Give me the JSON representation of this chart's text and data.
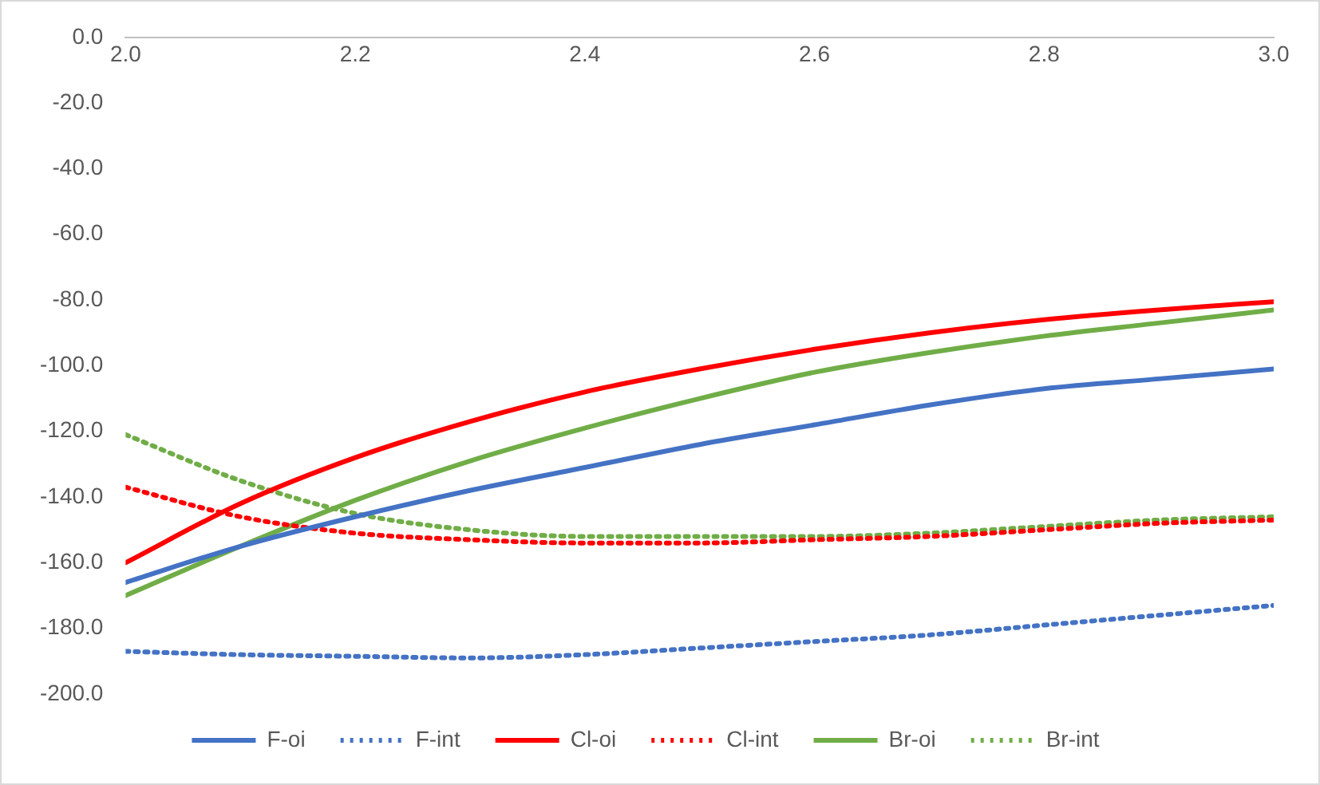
{
  "chart_data": {
    "type": "line",
    "x": [
      2.0,
      2.1,
      2.2,
      2.3,
      2.4,
      2.5,
      2.6,
      2.7,
      2.8,
      2.9,
      3.0
    ],
    "xlim": [
      2.0,
      3.0
    ],
    "xticks": [
      {
        "value": 2.0,
        "label": "2.0"
      },
      {
        "value": 2.2,
        "label": "2.2"
      },
      {
        "value": 2.4,
        "label": "2.4"
      },
      {
        "value": 2.6,
        "label": "2.6"
      },
      {
        "value": 2.8,
        "label": "2.8"
      },
      {
        "value": 3.0,
        "label": "3.0"
      }
    ],
    "ylim": [
      -200,
      0
    ],
    "yticks": [
      {
        "value": 0,
        "label": "0.0"
      },
      {
        "value": -20,
        "label": "-20.0"
      },
      {
        "value": -40,
        "label": "-40.0"
      },
      {
        "value": -60,
        "label": "-60.0"
      },
      {
        "value": -80,
        "label": "-80.0"
      },
      {
        "value": -100,
        "label": "-100.0"
      },
      {
        "value": -120,
        "label": "-120.0"
      },
      {
        "value": -140,
        "label": "-140.0"
      },
      {
        "value": -160,
        "label": "-160.0"
      },
      {
        "value": -180,
        "label": "-180.0"
      },
      {
        "value": -200,
        "label": "-200.0"
      }
    ],
    "grid": false,
    "legend": "bottom",
    "marker": "none",
    "series": [
      {
        "name": "F-oi",
        "color": "#4472c4",
        "line_style": "solid",
        "values": [
          -166,
          -155,
          -146,
          -138,
          -131,
          -124,
          -118,
          -112,
          -107,
          -104,
          -101
        ]
      },
      {
        "name": "F-int",
        "color": "#4472c4",
        "line_style": "dotted",
        "values": [
          -187,
          -188,
          -188.5,
          -189,
          -188,
          -186,
          -184,
          -182,
          -179,
          -176,
          -173
        ]
      },
      {
        "name": "Cl-oi",
        "color": "#ff0000",
        "line_style": "solid",
        "values": [
          -160,
          -142,
          -128,
          -117,
          -108,
          -101,
          -95,
          -90,
          -86,
          -83,
          -80.5
        ]
      },
      {
        "name": "Cl-int",
        "color": "#ff0000",
        "line_style": "dotted",
        "values": [
          -137,
          -146,
          -151,
          -153,
          -154,
          -154,
          -153,
          -152,
          -150,
          -148,
          -147
        ]
      },
      {
        "name": "Br-oi",
        "color": "#70ad47",
        "line_style": "solid",
        "values": [
          -170,
          -155,
          -141,
          -129,
          -119,
          -110,
          -102,
          -96,
          -91,
          -87,
          -83
        ]
      },
      {
        "name": "Br-int",
        "color": "#70ad47",
        "line_style": "dotted",
        "values": [
          -121,
          -135,
          -145,
          -150,
          -152,
          -152,
          -152,
          -151,
          -149,
          -147,
          -146
        ]
      }
    ]
  }
}
